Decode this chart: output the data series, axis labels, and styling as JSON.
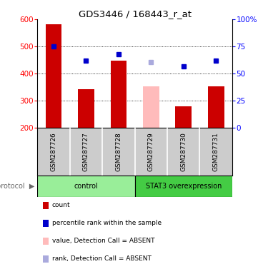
{
  "title": "GDS3446 / 168443_r_at",
  "samples": [
    "GSM287726",
    "GSM287727",
    "GSM287728",
    "GSM287729",
    "GSM287730",
    "GSM287731"
  ],
  "bar_values": [
    580,
    343,
    447,
    352,
    280,
    352
  ],
  "bar_colors": [
    "#cc0000",
    "#cc0000",
    "#cc0000",
    "#ffbbbb",
    "#cc0000",
    "#cc0000"
  ],
  "dot_values": [
    500,
    447,
    470,
    442,
    427,
    447
  ],
  "dot_colors": [
    "#0000cc",
    "#0000cc",
    "#0000cc",
    "#aaaadd",
    "#0000cc",
    "#0000cc"
  ],
  "ylim": [
    200,
    600
  ],
  "y_left_ticks": [
    200,
    300,
    400,
    500,
    600
  ],
  "y_right_ticks": [
    0,
    25,
    50,
    75,
    100
  ],
  "y_right_labels": [
    "0",
    "25",
    "50",
    "75",
    "100%"
  ],
  "grid_lines": [
    300,
    400,
    500
  ],
  "protocol_groups": [
    {
      "label": "control",
      "start": 0,
      "end": 3,
      "color": "#99ee99"
    },
    {
      "label": "STAT3 overexpression",
      "start": 3,
      "end": 6,
      "color": "#44cc44"
    }
  ],
  "legend_colors": [
    "#cc0000",
    "#0000cc",
    "#ffbbbb",
    "#aaaadd"
  ],
  "legend_labels": [
    "count",
    "percentile rank within the sample",
    "value, Detection Call = ABSENT",
    "rank, Detection Call = ABSENT"
  ],
  "sample_bg": "#cccccc",
  "bar_width": 0.5
}
